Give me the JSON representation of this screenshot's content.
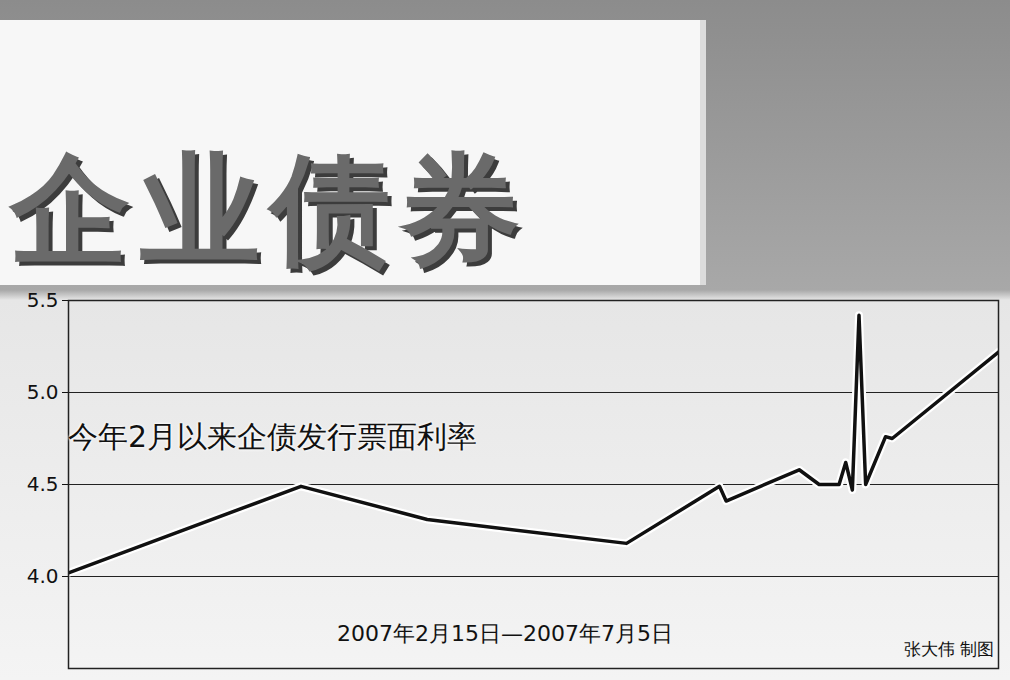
{
  "chart_data": {
    "type": "line",
    "banner": "企业债券",
    "title": "今年2月以来企债发行票面利率",
    "xlabel": "2007年2月15日—2007年7月5日",
    "credit": "张大伟 制图",
    "x": [
      "2007-02-15",
      "2007-03-22",
      "2007-04-10",
      "2007-05-10",
      "2007-05-24",
      "2007-05-25",
      "2007-06-05",
      "2007-06-08",
      "2007-06-11",
      "2007-06-12",
      "2007-06-13",
      "2007-06-14",
      "2007-06-15",
      "2007-06-18",
      "2007-06-19",
      "2007-07-05"
    ],
    "values": [
      4.02,
      4.49,
      4.31,
      4.18,
      4.49,
      4.41,
      4.58,
      4.5,
      4.5,
      4.62,
      4.47,
      5.42,
      4.5,
      4.76,
      4.75,
      5.22
    ],
    "color": "#111111",
    "xlim": [
      "2007-02-15",
      "2007-07-05"
    ],
    "ylim": [
      3.5,
      5.5
    ],
    "yticks": [
      {
        "value": 4,
        "label": "4.0"
      },
      {
        "value": 4.5,
        "label": "4.5"
      },
      {
        "value": 5,
        "label": "5.0"
      },
      {
        "value": 5.5,
        "label": "5.5"
      }
    ],
    "grid": true,
    "tick_labels": "y"
  }
}
